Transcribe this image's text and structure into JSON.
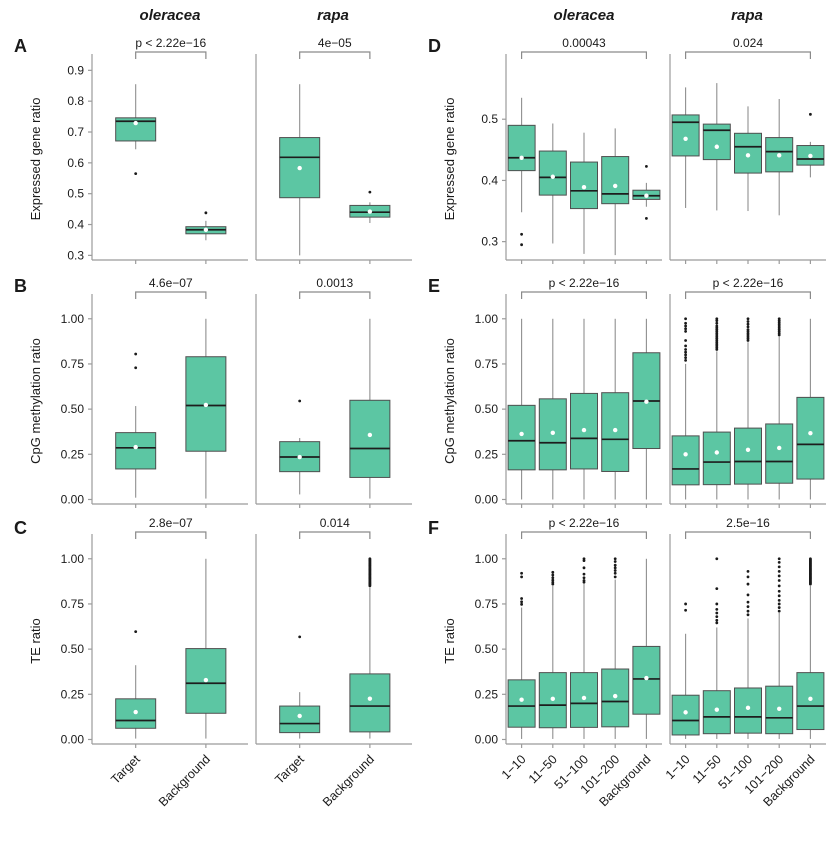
{
  "figure": {
    "column_titles": [
      "oleracea",
      "rapa"
    ],
    "colors": {
      "box_fill": "#5cc6a3",
      "box_stroke": "#4f4f4f",
      "median": "#1d1d1d",
      "whisker": "#8f8f8f",
      "axis": "#9b9b9b",
      "outlier": "#1a1a1a",
      "mean_dot": "#ffffff",
      "bracket": "#8a8a8a",
      "text": "#1a1a1a"
    }
  },
  "chart_data": [
    {
      "type": "box",
      "label": "A",
      "ylabel": "Expressed gene ratio",
      "ylim": [
        0.285,
        0.94
      ],
      "yticks": [
        "0.3",
        "0.4",
        "0.5",
        "0.6",
        "0.7",
        "0.8",
        "0.9"
      ],
      "ytick_vals": [
        0.3,
        0.4,
        0.5,
        0.6,
        0.7,
        0.8,
        0.9
      ],
      "show_xlabels": false,
      "subpanels": [
        {
          "species": "oleracea",
          "pvalue": "p < 2.22e−16",
          "categories": [
            "Target",
            "Background"
          ],
          "boxes": [
            {
              "whislo": 0.644,
              "q1": 0.671,
              "med": 0.735,
              "q3": 0.746,
              "whishi": 0.855,
              "mean": 0.729,
              "outliers": [
                0.565
              ]
            },
            {
              "whislo": 0.349,
              "q1": 0.37,
              "med": 0.383,
              "q3": 0.393,
              "whishi": 0.412,
              "mean": 0.383,
              "outliers": [
                0.438
              ]
            }
          ]
        },
        {
          "species": "rapa",
          "pvalue": "4e−05",
          "categories": [
            "Target",
            "Background"
          ],
          "boxes": [
            {
              "whislo": 0.3,
              "q1": 0.487,
              "med": 0.618,
              "q3": 0.682,
              "whishi": 0.855,
              "mean": 0.583,
              "outliers": []
            },
            {
              "whislo": 0.405,
              "q1": 0.424,
              "med": 0.44,
              "q3": 0.462,
              "whishi": 0.472,
              "mean": 0.442,
              "outliers": [
                0.505
              ]
            }
          ]
        }
      ]
    },
    {
      "type": "box",
      "label": "B",
      "ylabel": "CpG methylation ratio",
      "ylim": [
        -0.025,
        1.115
      ],
      "yticks": [
        "0.00",
        "0.25",
        "0.50",
        "0.75",
        "1.00"
      ],
      "ytick_vals": [
        0,
        0.25,
        0.5,
        0.75,
        1.0
      ],
      "show_xlabels": false,
      "subpanels": [
        {
          "species": "oleracea",
          "pvalue": "4.6e−07",
          "categories": [
            "Target",
            "Background"
          ],
          "boxes": [
            {
              "whislo": 0.01,
              "q1": 0.169,
              "med": 0.286,
              "q3": 0.37,
              "whishi": 0.517,
              "mean": 0.29,
              "outliers": [
                0.729,
                0.805
              ]
            },
            {
              "whislo": 0.005,
              "q1": 0.267,
              "med": 0.52,
              "q3": 0.79,
              "whishi": 1.0,
              "mean": 0.523,
              "outliers": []
            }
          ]
        },
        {
          "species": "rapa",
          "pvalue": "0.0013",
          "categories": [
            "Target",
            "Background"
          ],
          "boxes": [
            {
              "whislo": 0.028,
              "q1": 0.154,
              "med": 0.235,
              "q3": 0.32,
              "whishi": 0.34,
              "mean": 0.235,
              "outliers": [
                0.545
              ]
            },
            {
              "whislo": 0.005,
              "q1": 0.122,
              "med": 0.282,
              "q3": 0.549,
              "whishi": 1.0,
              "mean": 0.357,
              "outliers": []
            }
          ]
        }
      ]
    },
    {
      "type": "box",
      "label": "C",
      "ylabel": "TE ratio",
      "ylim": [
        -0.025,
        1.115
      ],
      "yticks": [
        "0.00",
        "0.25",
        "0.50",
        "0.75",
        "1.00"
      ],
      "ytick_vals": [
        0,
        0.25,
        0.5,
        0.75,
        1.0
      ],
      "show_xlabels": true,
      "subpanels": [
        {
          "species": "oleracea",
          "pvalue": "2.8e−07",
          "categories": [
            "Target",
            "Background"
          ],
          "boxes": [
            {
              "whislo": 0.005,
              "q1": 0.062,
              "med": 0.105,
              "q3": 0.225,
              "whishi": 0.411,
              "mean": 0.152,
              "outliers": [
                0.597
              ]
            },
            {
              "whislo": 0.005,
              "q1": 0.145,
              "med": 0.311,
              "q3": 0.503,
              "whishi": 1.0,
              "mean": 0.329,
              "outliers": []
            }
          ]
        },
        {
          "species": "rapa",
          "pvalue": "0.014",
          "categories": [
            "Target",
            "Background"
          ],
          "boxes": [
            {
              "whislo": 0.005,
              "q1": 0.038,
              "med": 0.088,
              "q3": 0.185,
              "whishi": 0.262,
              "mean": 0.13,
              "outliers": [
                0.568
              ]
            },
            {
              "whislo": 0.005,
              "q1": 0.042,
              "med": 0.185,
              "q3": 0.363,
              "whishi": 0.84,
              "mean": 0.226,
              "outliers": [
                0.85,
                0.855,
                0.86,
                0.865,
                0.87,
                0.875,
                0.88,
                0.885,
                0.89,
                0.895,
                0.9,
                0.905,
                0.91,
                0.915,
                0.92,
                0.925,
                0.93,
                0.935,
                0.94,
                0.945,
                0.95,
                0.955,
                0.96,
                0.965,
                0.97,
                0.975,
                0.98,
                0.985,
                0.99,
                0.995,
                1.0
              ]
            }
          ]
        }
      ]
    },
    {
      "type": "box",
      "label": "D",
      "ylabel": "Expressed gene ratio",
      "ylim": [
        0.27,
        0.6
      ],
      "yticks": [
        "0.3",
        "0.4",
        "0.5"
      ],
      "ytick_vals": [
        0.3,
        0.4,
        0.5
      ],
      "show_xlabels": false,
      "subpanels": [
        {
          "species": "oleracea",
          "pvalue": "0.00043",
          "categories": [
            "1−10",
            "11−50",
            "51−100",
            "101−200",
            "Background"
          ],
          "boxes": [
            {
              "whislo": 0.348,
              "q1": 0.416,
              "med": 0.437,
              "q3": 0.49,
              "whishi": 0.535,
              "mean": 0.437,
              "outliers": [
                0.312,
                0.295
              ]
            },
            {
              "whislo": 0.297,
              "q1": 0.376,
              "med": 0.405,
              "q3": 0.448,
              "whishi": 0.493,
              "mean": 0.406,
              "outliers": []
            },
            {
              "whislo": 0.28,
              "q1": 0.354,
              "med": 0.383,
              "q3": 0.43,
              "whishi": 0.478,
              "mean": 0.389,
              "outliers": []
            },
            {
              "whislo": 0.278,
              "q1": 0.362,
              "med": 0.378,
              "q3": 0.439,
              "whishi": 0.485,
              "mean": 0.391,
              "outliers": []
            },
            {
              "whislo": 0.357,
              "q1": 0.369,
              "med": 0.375,
              "q3": 0.384,
              "whishi": 0.396,
              "mean": 0.375,
              "outliers": [
                0.423,
                0.338
              ]
            }
          ]
        },
        {
          "species": "rapa",
          "pvalue": "0.024",
          "categories": [
            "1−10",
            "11−50",
            "51−100",
            "101−200",
            "Background"
          ],
          "boxes": [
            {
              "whislo": 0.355,
              "q1": 0.44,
              "med": 0.495,
              "q3": 0.507,
              "whishi": 0.552,
              "mean": 0.468,
              "outliers": []
            },
            {
              "whislo": 0.351,
              "q1": 0.434,
              "med": 0.482,
              "q3": 0.492,
              "whishi": 0.559,
              "mean": 0.455,
              "outliers": []
            },
            {
              "whislo": 0.35,
              "q1": 0.412,
              "med": 0.455,
              "q3": 0.477,
              "whishi": 0.521,
              "mean": 0.441,
              "outliers": []
            },
            {
              "whislo": 0.343,
              "q1": 0.414,
              "med": 0.447,
              "q3": 0.47,
              "whishi": 0.533,
              "mean": 0.441,
              "outliers": []
            },
            {
              "whislo": 0.405,
              "q1": 0.425,
              "med": 0.435,
              "q3": 0.457,
              "whishi": 0.463,
              "mean": 0.44,
              "outliers": [
                0.508
              ]
            }
          ]
        }
      ]
    },
    {
      "type": "box",
      "label": "E",
      "ylabel": "CpG methylation ratio",
      "ylim": [
        -0.025,
        1.115
      ],
      "yticks": [
        "0.00",
        "0.25",
        "0.50",
        "0.75",
        "1.00"
      ],
      "ytick_vals": [
        0,
        0.25,
        0.5,
        0.75,
        1.0
      ],
      "show_xlabels": false,
      "subpanels": [
        {
          "species": "oleracea",
          "pvalue": "p < 2.22e−16",
          "categories": [
            "1−10",
            "11−50",
            "51−100",
            "101−200",
            "Background"
          ],
          "boxes": [
            {
              "whislo": 0.0,
              "q1": 0.164,
              "med": 0.325,
              "q3": 0.521,
              "whishi": 1.0,
              "mean": 0.363,
              "outliers": []
            },
            {
              "whislo": 0.0,
              "q1": 0.164,
              "med": 0.314,
              "q3": 0.557,
              "whishi": 1.0,
              "mean": 0.369,
              "outliers": []
            },
            {
              "whislo": 0.0,
              "q1": 0.169,
              "med": 0.338,
              "q3": 0.587,
              "whishi": 1.0,
              "mean": 0.384,
              "outliers": []
            },
            {
              "whislo": 0.0,
              "q1": 0.155,
              "med": 0.333,
              "q3": 0.591,
              "whishi": 1.0,
              "mean": 0.384,
              "outliers": []
            },
            {
              "whislo": 0.0,
              "q1": 0.282,
              "med": 0.545,
              "q3": 0.812,
              "whishi": 1.0,
              "mean": 0.541,
              "outliers": []
            }
          ]
        },
        {
          "species": "rapa",
          "pvalue": "p < 2.22e−16",
          "categories": [
            "1−10",
            "11−50",
            "51−100",
            "101−200",
            "Background"
          ],
          "boxes": [
            {
              "whislo": 0.0,
              "q1": 0.081,
              "med": 0.169,
              "q3": 0.352,
              "whishi": 0.75,
              "mean": 0.25,
              "outliers": [
                0.77,
                0.785,
                0.8,
                0.815,
                0.83,
                0.85,
                0.88,
                0.93,
                0.945,
                0.96,
                0.975,
                1.0
              ]
            },
            {
              "whislo": 0.0,
              "q1": 0.082,
              "med": 0.207,
              "q3": 0.373,
              "whishi": 0.82,
              "mean": 0.26,
              "outliers": [
                0.83,
                0.84,
                0.85,
                0.86,
                0.87,
                0.88,
                0.89,
                0.9,
                0.91,
                0.92,
                0.93,
                0.94,
                0.95,
                0.96,
                0.975,
                0.99,
                1.0
              ]
            },
            {
              "whislo": 0.0,
              "q1": 0.085,
              "med": 0.21,
              "q3": 0.395,
              "whishi": 0.87,
              "mean": 0.275,
              "outliers": [
                0.88,
                0.89,
                0.9,
                0.91,
                0.92,
                0.93,
                0.94,
                0.955,
                0.97,
                0.985,
                1.0
              ]
            },
            {
              "whislo": 0.0,
              "q1": 0.09,
              "med": 0.21,
              "q3": 0.418,
              "whishi": 0.9,
              "mean": 0.285,
              "outliers": [
                0.91,
                0.92,
                0.93,
                0.94,
                0.95,
                0.96,
                0.97,
                0.98,
                0.99,
                1.0
              ]
            },
            {
              "whislo": 0.0,
              "q1": 0.113,
              "med": 0.305,
              "q3": 0.565,
              "whishi": 1.0,
              "mean": 0.367,
              "outliers": []
            }
          ]
        }
      ]
    },
    {
      "type": "box",
      "label": "F",
      "ylabel": "TE ratio",
      "ylim": [
        -0.025,
        1.115
      ],
      "yticks": [
        "0.00",
        "0.25",
        "0.50",
        "0.75",
        "1.00"
      ],
      "ytick_vals": [
        0,
        0.25,
        0.5,
        0.75,
        1.0
      ],
      "show_xlabels": true,
      "subpanels": [
        {
          "species": "oleracea",
          "pvalue": "p < 2.22e−16",
          "categories": [
            "1−10",
            "11−50",
            "51−100",
            "101−200",
            "Background"
          ],
          "boxes": [
            {
              "whislo": 0.003,
              "q1": 0.068,
              "med": 0.185,
              "q3": 0.33,
              "whishi": 0.73,
              "mean": 0.22,
              "outliers": [
                0.748,
                0.762,
                0.78,
                0.9,
                0.92
              ]
            },
            {
              "whislo": 0.003,
              "q1": 0.065,
              "med": 0.19,
              "q3": 0.37,
              "whishi": 0.85,
              "mean": 0.225,
              "outliers": [
                0.86,
                0.87,
                0.882,
                0.895,
                0.91,
                0.925
              ]
            },
            {
              "whislo": 0.003,
              "q1": 0.067,
              "med": 0.2,
              "q3": 0.37,
              "whishi": 0.86,
              "mean": 0.23,
              "outliers": [
                0.87,
                0.88,
                0.895,
                0.915,
                0.95,
                0.99,
                1.0
              ]
            },
            {
              "whislo": 0.003,
              "q1": 0.07,
              "med": 0.21,
              "q3": 0.39,
              "whishi": 0.885,
              "mean": 0.24,
              "outliers": [
                0.9,
                0.92,
                0.935,
                0.95,
                0.965,
                0.985,
                1.0
              ]
            },
            {
              "whislo": 0.003,
              "q1": 0.14,
              "med": 0.335,
              "q3": 0.515,
              "whishi": 1.0,
              "mean": 0.34,
              "outliers": []
            }
          ]
        },
        {
          "species": "rapa",
          "pvalue": "2.5e−16",
          "categories": [
            "1−10",
            "11−50",
            "51−100",
            "101−200",
            "Background"
          ],
          "boxes": [
            {
              "whislo": 0.003,
              "q1": 0.025,
              "med": 0.105,
              "q3": 0.245,
              "whishi": 0.585,
              "mean": 0.15,
              "outliers": [
                0.715,
                0.75
              ]
            },
            {
              "whislo": 0.003,
              "q1": 0.032,
              "med": 0.125,
              "q3": 0.27,
              "whishi": 0.62,
              "mean": 0.165,
              "outliers": [
                0.645,
                0.66,
                0.68,
                0.7,
                0.72,
                0.75,
                0.835,
                1.0
              ]
            },
            {
              "whislo": 0.003,
              "q1": 0.035,
              "med": 0.125,
              "q3": 0.285,
              "whishi": 0.67,
              "mean": 0.175,
              "outliers": [
                0.69,
                0.71,
                0.735,
                0.76,
                0.8,
                0.86,
                0.9,
                0.93
              ]
            },
            {
              "whislo": 0.003,
              "q1": 0.032,
              "med": 0.12,
              "q3": 0.295,
              "whishi": 0.7,
              "mean": 0.17,
              "outliers": [
                0.71,
                0.73,
                0.75,
                0.77,
                0.795,
                0.82,
                0.85,
                0.88,
                0.905,
                0.93,
                0.955,
                0.98,
                1.0
              ]
            },
            {
              "whislo": 0.003,
              "q1": 0.055,
              "med": 0.185,
              "q3": 0.37,
              "whishi": 0.85,
              "mean": 0.225,
              "outliers": [
                0.86,
                0.865,
                0.87,
                0.875,
                0.88,
                0.885,
                0.89,
                0.895,
                0.9,
                0.905,
                0.91,
                0.915,
                0.92,
                0.925,
                0.93,
                0.935,
                0.94,
                0.945,
                0.95,
                0.955,
                0.96,
                0.965,
                0.97,
                0.975,
                0.98,
                0.985,
                0.99,
                0.995,
                1.0
              ]
            }
          ]
        }
      ]
    }
  ]
}
